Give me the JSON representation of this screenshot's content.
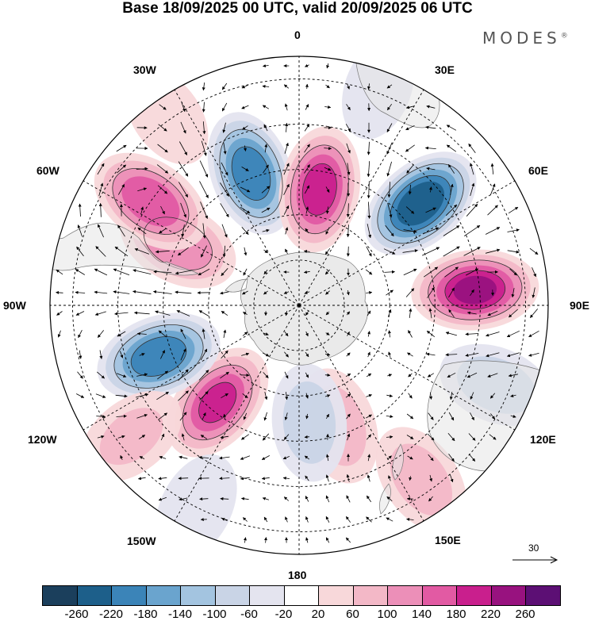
{
  "title": "Base 18/09/2025 00 UTC, valid 20/09/2025 06 UTC",
  "brand": "MODES",
  "brand_mark": "®",
  "longitude_labels": {
    "lon_0": "0",
    "lon_30e": "30E",
    "lon_60e": "60E",
    "lon_90e": "90E",
    "lon_120e": "120E",
    "lon_150e": "150E",
    "lon_180": "180",
    "lon_150w": "150W",
    "lon_120w": "120W",
    "lon_90w": "90W",
    "lon_60w": "60W",
    "lon_30w": "30W"
  },
  "reference_vector": {
    "label": "30"
  },
  "colorbar": {
    "ticks": [
      "-260",
      "-220",
      "-180",
      "-140",
      "-100",
      "-60",
      "-20",
      "20",
      "60",
      "100",
      "140",
      "180",
      "220",
      "260"
    ],
    "colors": [
      "#1b3f5c",
      "#1d5f8a",
      "#3b84b8",
      "#6aa4ce",
      "#a3c4e0",
      "#c9d4e6",
      "#e4e4ef",
      "#ffffff",
      "#f8d8da",
      "#f3b8c7",
      "#ec8fb8",
      "#e25aa3",
      "#c91f8d",
      "#98127f",
      "#5c0f74"
    ]
  },
  "anomaly_centers": [
    {
      "lon": -20,
      "colat": 31,
      "value": -210
    },
    {
      "lon": 10,
      "colat": 26,
      "value": 200
    },
    {
      "lon": 50,
      "colat": 35,
      "value": -260
    },
    {
      "lon": 85,
      "colat": 39,
      "value": 225
    },
    {
      "lon": 112,
      "colat": 47,
      "value": -90
    },
    {
      "lon": 145,
      "colat": 47,
      "value": 85
    },
    {
      "lon": 162,
      "colat": 28,
      "value": 90
    },
    {
      "lon": 175,
      "colat": 26,
      "value": -90
    },
    {
      "lon": -140,
      "colat": 28,
      "value": 185
    },
    {
      "lon": -110,
      "colat": 33,
      "value": -215
    },
    {
      "lon": -63,
      "colat": 30,
      "value": 140
    },
    {
      "lon": -55,
      "colat": 40,
      "value": 180
    },
    {
      "lon": -128,
      "colat": 47,
      "value": 70
    },
    {
      "lon": -153,
      "colat": 50,
      "value": -60
    },
    {
      "lon": 20,
      "colat": 51,
      "value": -40
    },
    {
      "lon": -35,
      "colat": 51,
      "value": 45
    }
  ]
}
